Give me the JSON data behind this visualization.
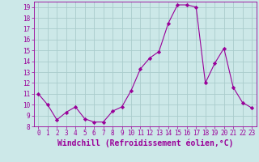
{
  "x": [
    0,
    1,
    2,
    3,
    4,
    5,
    6,
    7,
    8,
    9,
    10,
    11,
    12,
    13,
    14,
    15,
    16,
    17,
    18,
    19,
    20,
    21,
    22,
    23
  ],
  "y": [
    11,
    10,
    8.6,
    9.3,
    9.8,
    8.7,
    8.4,
    8.4,
    9.4,
    9.8,
    11.3,
    13.3,
    14.3,
    14.9,
    17.5,
    19.2,
    19.2,
    19.0,
    12.0,
    13.8,
    15.2,
    11.6,
    10.2,
    9.7
  ],
  "line_color": "#990099",
  "marker": "D",
  "marker_size": 2.2,
  "bg_color": "#cce8e8",
  "grid_color": "#aacccc",
  "xlabel": "Windchill (Refroidissement éolien,°C)",
  "xlabel_color": "#990099",
  "tick_color": "#990099",
  "ylim": [
    8,
    19.5
  ],
  "xlim": [
    -0.5,
    23.5
  ],
  "yticks": [
    8,
    9,
    10,
    11,
    12,
    13,
    14,
    15,
    16,
    17,
    18,
    19
  ],
  "xticks": [
    0,
    1,
    2,
    3,
    4,
    5,
    6,
    7,
    8,
    9,
    10,
    11,
    12,
    13,
    14,
    15,
    16,
    17,
    18,
    19,
    20,
    21,
    22,
    23
  ],
  "tick_fontsize": 5.5,
  "xlabel_fontsize": 7.0
}
